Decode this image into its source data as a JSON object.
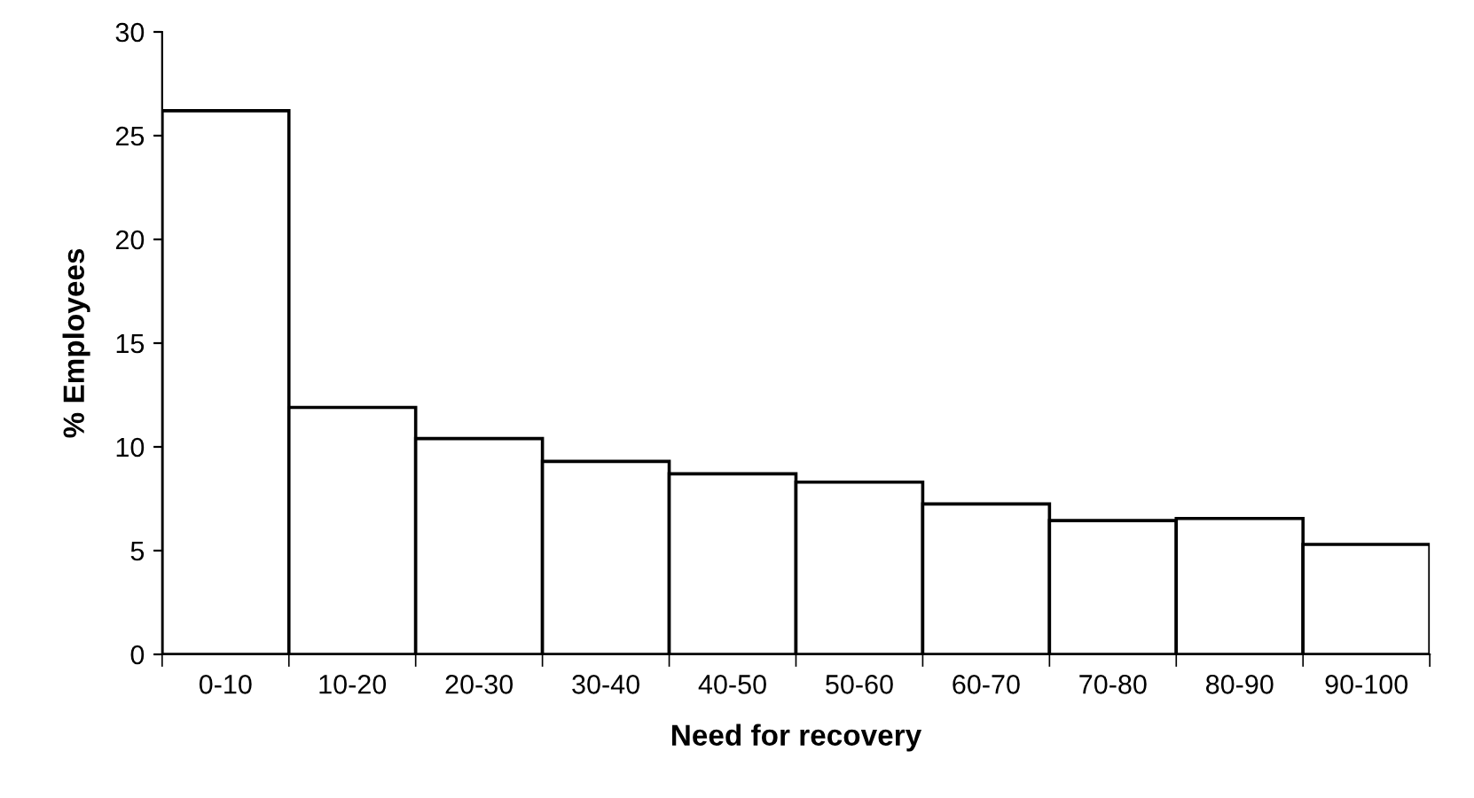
{
  "chart_data": {
    "type": "bar",
    "xlabel": "Need for recovery",
    "ylabel": "% Employees",
    "categories": [
      "0-10",
      "10-20",
      "20-30",
      "30-40",
      "40-50",
      "50-60",
      "60-70",
      "70-80",
      "80-90",
      "90-100"
    ],
    "values": [
      26.2,
      11.9,
      10.4,
      9.3,
      8.7,
      8.3,
      7.25,
      6.45,
      6.55,
      5.3
    ],
    "color": "#ffffff",
    "ylim": [
      0,
      30
    ],
    "yticks": [
      0,
      5,
      10,
      15,
      20,
      25,
      30
    ],
    "grid": false,
    "legend": false
  }
}
